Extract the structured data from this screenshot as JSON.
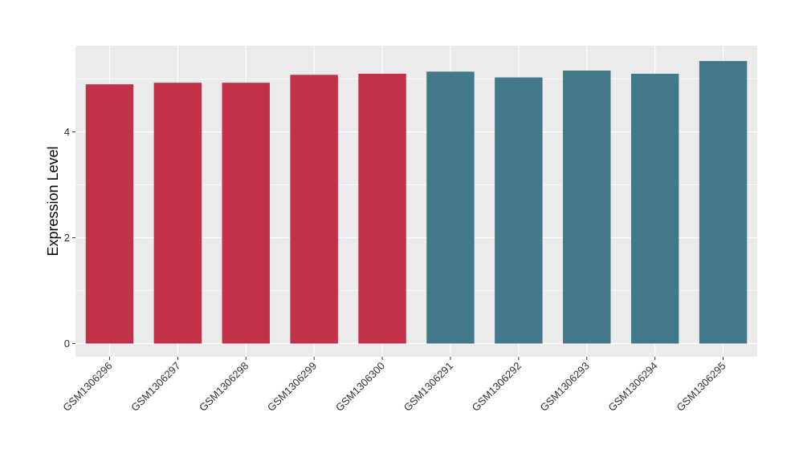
{
  "chart_data": {
    "type": "bar",
    "title": "",
    "xlabel": "",
    "ylabel": "Expression Level",
    "categories": [
      "GSM1306296",
      "GSM1306297",
      "GSM1306298",
      "GSM1306299",
      "GSM1306300",
      "GSM1306291",
      "GSM1306292",
      "GSM1306293",
      "GSM1306294",
      "GSM1306295"
    ],
    "values": [
      4.9,
      4.93,
      4.93,
      5.08,
      5.1,
      5.14,
      5.03,
      5.16,
      5.1,
      5.34
    ],
    "groups": [
      "A",
      "A",
      "A",
      "A",
      "A",
      "B",
      "B",
      "B",
      "B",
      "B"
    ],
    "group_colors": {
      "A": "#c33149",
      "B": "#43788a"
    },
    "ylim": [
      -0.25,
      5.63
    ],
    "yticks": [
      0,
      2,
      4
    ],
    "grid": true,
    "legend": "none",
    "panel_background": "#ebebeb"
  }
}
